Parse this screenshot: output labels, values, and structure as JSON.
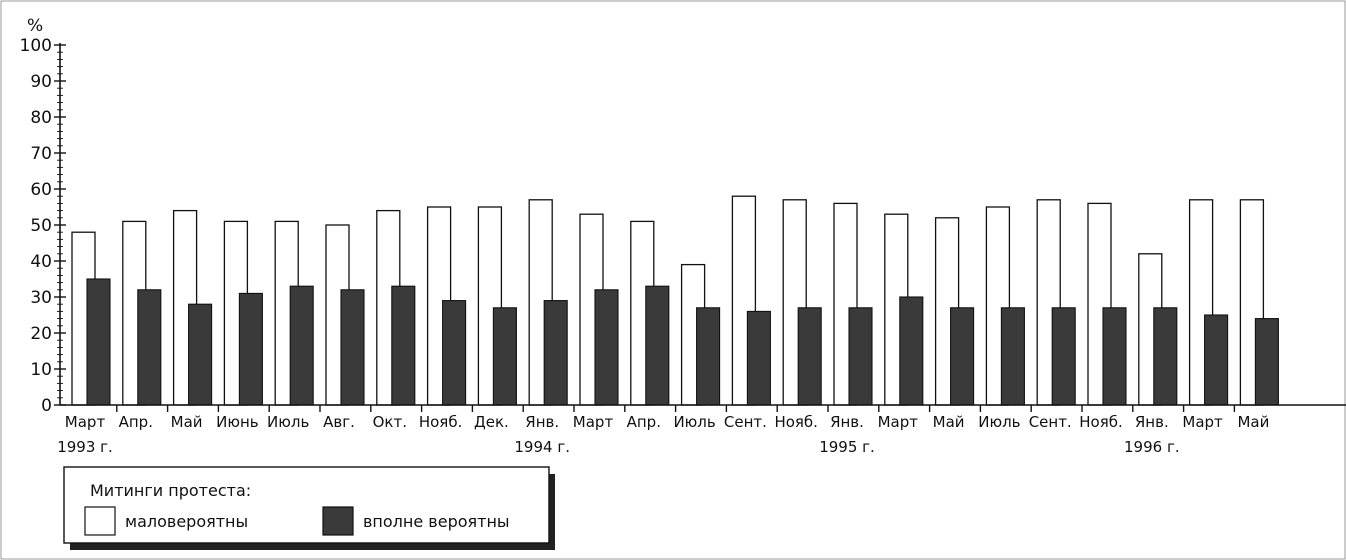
{
  "chart_data": {
    "type": "bar",
    "unit_label": "%",
    "ylim": [
      0,
      100
    ],
    "yticks": [
      "0",
      "10",
      "20",
      "30",
      "40",
      "50",
      "60",
      "70",
      "80",
      "90",
      "100"
    ],
    "categories": [
      "Март",
      "Апр.",
      "Май",
      "Июнь",
      "Июль",
      "Авг.",
      "Окт.",
      "Нояб.",
      "Дек.",
      "Янв.",
      "Март",
      "Апр.",
      "Июль",
      "Сент.",
      "Нояб.",
      "Янв.",
      "Март",
      "Май",
      "Июль",
      "Сент.",
      "Нояб.",
      "Янв.",
      "Март",
      "Май"
    ],
    "year_labels": [
      {
        "category_index": 0,
        "text": "1993 г."
      },
      {
        "category_index": 9,
        "text": "1994 г."
      },
      {
        "category_index": 15,
        "text": "1995 г."
      },
      {
        "category_index": 21,
        "text": "1996 г."
      }
    ],
    "series": [
      {
        "name": "маловероятны",
        "color": "#ffffff",
        "values": [
          48,
          51,
          54,
          51,
          51,
          50,
          54,
          55,
          55,
          57,
          53,
          51,
          39,
          58,
          57,
          56,
          53,
          52,
          55,
          57,
          56,
          42,
          57,
          57
        ]
      },
      {
        "name": "вполне вероятны",
        "color": "#3a3a3a",
        "values": [
          35,
          32,
          28,
          31,
          33,
          32,
          33,
          29,
          27,
          29,
          32,
          33,
          27,
          26,
          27,
          27,
          30,
          27,
          27,
          27,
          27,
          27,
          25,
          24
        ]
      }
    ],
    "legend": {
      "title": "Митинги протеста:",
      "position": "bottom-left"
    },
    "grid": false
  }
}
